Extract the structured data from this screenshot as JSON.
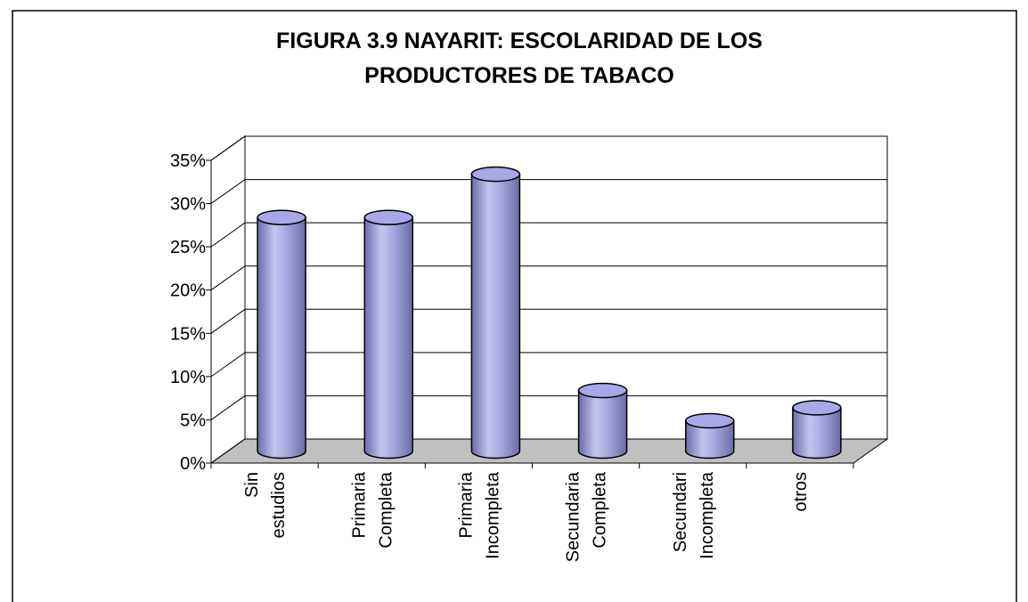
{
  "chart_data": {
    "type": "cylinder",
    "title": [
      "FIGURA 3.9 NAYARIT: ESCOLARIDAD DE LOS",
      "PRODUCTORES DE TABACO"
    ],
    "categories": [
      [
        "Sin",
        "estudios"
      ],
      [
        "Primaria",
        "Completa"
      ],
      [
        "Primaria",
        "Incompleta"
      ],
      [
        "Secundaria",
        "Completa"
      ],
      [
        "Secundari",
        "Incompleta"
      ],
      [
        "otros"
      ]
    ],
    "values": [
      27,
      27,
      32,
      7,
      3.5,
      5
    ],
    "color": "#9999e6",
    "ylim": [
      0,
      35
    ],
    "yticks": [
      {
        "value": 0,
        "label": "0%"
      },
      {
        "value": 5,
        "label": "5%"
      },
      {
        "value": 10,
        "label": "10%"
      },
      {
        "value": 15,
        "label": "15%"
      },
      {
        "value": 20,
        "label": "20%"
      },
      {
        "value": 25,
        "label": "25%"
      },
      {
        "value": 30,
        "label": "30%"
      },
      {
        "value": 35,
        "label": "35%"
      }
    ],
    "grid": true
  }
}
